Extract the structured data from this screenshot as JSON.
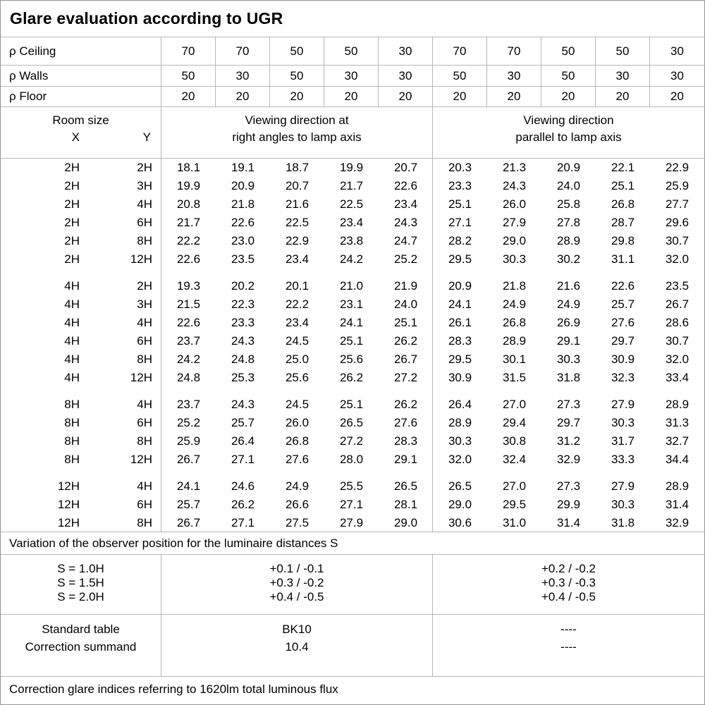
{
  "title": "Glare evaluation according to UGR",
  "reflectance_rows": [
    {
      "label": "ρ Ceiling",
      "values": [
        "70",
        "70",
        "50",
        "50",
        "30",
        "70",
        "70",
        "50",
        "50",
        "30"
      ]
    },
    {
      "label": "ρ Walls",
      "values": [
        "50",
        "30",
        "50",
        "30",
        "30",
        "50",
        "30",
        "50",
        "30",
        "30"
      ]
    },
    {
      "label": "ρ Floor",
      "values": [
        "20",
        "20",
        "20",
        "20",
        "20",
        "20",
        "20",
        "20",
        "20",
        "20"
      ]
    }
  ],
  "header": {
    "room_size_label": "Room size",
    "x_label": "X",
    "y_label": "Y",
    "group1_line1": "Viewing direction at",
    "group1_line2": "right angles to lamp axis",
    "group2_line1": "Viewing direction",
    "group2_line2": "parallel to lamp axis"
  },
  "ugr_blocks": [
    {
      "rows": [
        {
          "x": "2H",
          "y": "2H",
          "right_angles": [
            "18.1",
            "19.1",
            "18.7",
            "19.9",
            "20.7"
          ],
          "parallel": [
            "20.3",
            "21.3",
            "20.9",
            "22.1",
            "22.9"
          ]
        },
        {
          "x": "2H",
          "y": "3H",
          "right_angles": [
            "19.9",
            "20.9",
            "20.7",
            "21.7",
            "22.6"
          ],
          "parallel": [
            "23.3",
            "24.3",
            "24.0",
            "25.1",
            "25.9"
          ]
        },
        {
          "x": "2H",
          "y": "4H",
          "right_angles": [
            "20.8",
            "21.8",
            "21.6",
            "22.5",
            "23.4"
          ],
          "parallel": [
            "25.1",
            "26.0",
            "25.8",
            "26.8",
            "27.7"
          ]
        },
        {
          "x": "2H",
          "y": "6H",
          "right_angles": [
            "21.7",
            "22.6",
            "22.5",
            "23.4",
            "24.3"
          ],
          "parallel": [
            "27.1",
            "27.9",
            "27.8",
            "28.7",
            "29.6"
          ]
        },
        {
          "x": "2H",
          "y": "8H",
          "right_angles": [
            "22.2",
            "23.0",
            "22.9",
            "23.8",
            "24.7"
          ],
          "parallel": [
            "28.2",
            "29.0",
            "28.9",
            "29.8",
            "30.7"
          ]
        },
        {
          "x": "2H",
          "y": "12H",
          "right_angles": [
            "22.6",
            "23.5",
            "23.4",
            "24.2",
            "25.2"
          ],
          "parallel": [
            "29.5",
            "30.3",
            "30.2",
            "31.1",
            "32.0"
          ]
        }
      ]
    },
    {
      "rows": [
        {
          "x": "4H",
          "y": "2H",
          "right_angles": [
            "19.3",
            "20.2",
            "20.1",
            "21.0",
            "21.9"
          ],
          "parallel": [
            "20.9",
            "21.8",
            "21.6",
            "22.6",
            "23.5"
          ]
        },
        {
          "x": "4H",
          "y": "3H",
          "right_angles": [
            "21.5",
            "22.3",
            "22.2",
            "23.1",
            "24.0"
          ],
          "parallel": [
            "24.1",
            "24.9",
            "24.9",
            "25.7",
            "26.7"
          ]
        },
        {
          "x": "4H",
          "y": "4H",
          "right_angles": [
            "22.6",
            "23.3",
            "23.4",
            "24.1",
            "25.1"
          ],
          "parallel": [
            "26.1",
            "26.8",
            "26.9",
            "27.6",
            "28.6"
          ]
        },
        {
          "x": "4H",
          "y": "6H",
          "right_angles": [
            "23.7",
            "24.3",
            "24.5",
            "25.1",
            "26.2"
          ],
          "parallel": [
            "28.3",
            "28.9",
            "29.1",
            "29.7",
            "30.7"
          ]
        },
        {
          "x": "4H",
          "y": "8H",
          "right_angles": [
            "24.2",
            "24.8",
            "25.0",
            "25.6",
            "26.7"
          ],
          "parallel": [
            "29.5",
            "30.1",
            "30.3",
            "30.9",
            "32.0"
          ]
        },
        {
          "x": "4H",
          "y": "12H",
          "right_angles": [
            "24.8",
            "25.3",
            "25.6",
            "26.2",
            "27.2"
          ],
          "parallel": [
            "30.9",
            "31.5",
            "31.8",
            "32.3",
            "33.4"
          ]
        }
      ]
    },
    {
      "rows": [
        {
          "x": "8H",
          "y": "4H",
          "right_angles": [
            "23.7",
            "24.3",
            "24.5",
            "25.1",
            "26.2"
          ],
          "parallel": [
            "26.4",
            "27.0",
            "27.3",
            "27.9",
            "28.9"
          ]
        },
        {
          "x": "8H",
          "y": "6H",
          "right_angles": [
            "25.2",
            "25.7",
            "26.0",
            "26.5",
            "27.6"
          ],
          "parallel": [
            "28.9",
            "29.4",
            "29.7",
            "30.3",
            "31.3"
          ]
        },
        {
          "x": "8H",
          "y": "8H",
          "right_angles": [
            "25.9",
            "26.4",
            "26.8",
            "27.2",
            "28.3"
          ],
          "parallel": [
            "30.3",
            "30.8",
            "31.2",
            "31.7",
            "32.7"
          ]
        },
        {
          "x": "8H",
          "y": "12H",
          "right_angles": [
            "26.7",
            "27.1",
            "27.6",
            "28.0",
            "29.1"
          ],
          "parallel": [
            "32.0",
            "32.4",
            "32.9",
            "33.3",
            "34.4"
          ]
        }
      ]
    },
    {
      "rows": [
        {
          "x": "12H",
          "y": "4H",
          "right_angles": [
            "24.1",
            "24.6",
            "24.9",
            "25.5",
            "26.5"
          ],
          "parallel": [
            "26.5",
            "27.0",
            "27.3",
            "27.9",
            "28.9"
          ]
        },
        {
          "x": "12H",
          "y": "6H",
          "right_angles": [
            "25.7",
            "26.2",
            "26.6",
            "27.1",
            "28.1"
          ],
          "parallel": [
            "29.0",
            "29.5",
            "29.9",
            "30.3",
            "31.4"
          ]
        },
        {
          "x": "12H",
          "y": "8H",
          "right_angles": [
            "26.7",
            "27.1",
            "27.5",
            "27.9",
            "29.0"
          ],
          "parallel": [
            "30.6",
            "31.0",
            "31.4",
            "31.8",
            "32.9"
          ]
        }
      ]
    }
  ],
  "variation_note": "Variation of the observer position for the luminaire distances S",
  "variation_rows": [
    {
      "label": "S = 1.0H",
      "right_angles": "+0.1 / -0.1",
      "parallel": "+0.2 / -0.2"
    },
    {
      "label": "S = 1.5H",
      "right_angles": "+0.3 / -0.2",
      "parallel": "+0.3 / -0.3"
    },
    {
      "label": "S = 2.0H",
      "right_angles": "+0.4 / -0.5",
      "parallel": "+0.4 / -0.5"
    }
  ],
  "summary_rows": [
    {
      "label": "Standard table",
      "right_angles": "BK10",
      "parallel": "----"
    },
    {
      "label": "Correction summand",
      "right_angles": "10.4",
      "parallel": "----"
    }
  ],
  "footer_note": "Correction glare indices referring to 1620lm total luminous flux",
  "colors": {
    "grid_line": "#b3b8bc",
    "outer_border": "#8f9499",
    "text": "#000000",
    "background": "#ffffff"
  }
}
